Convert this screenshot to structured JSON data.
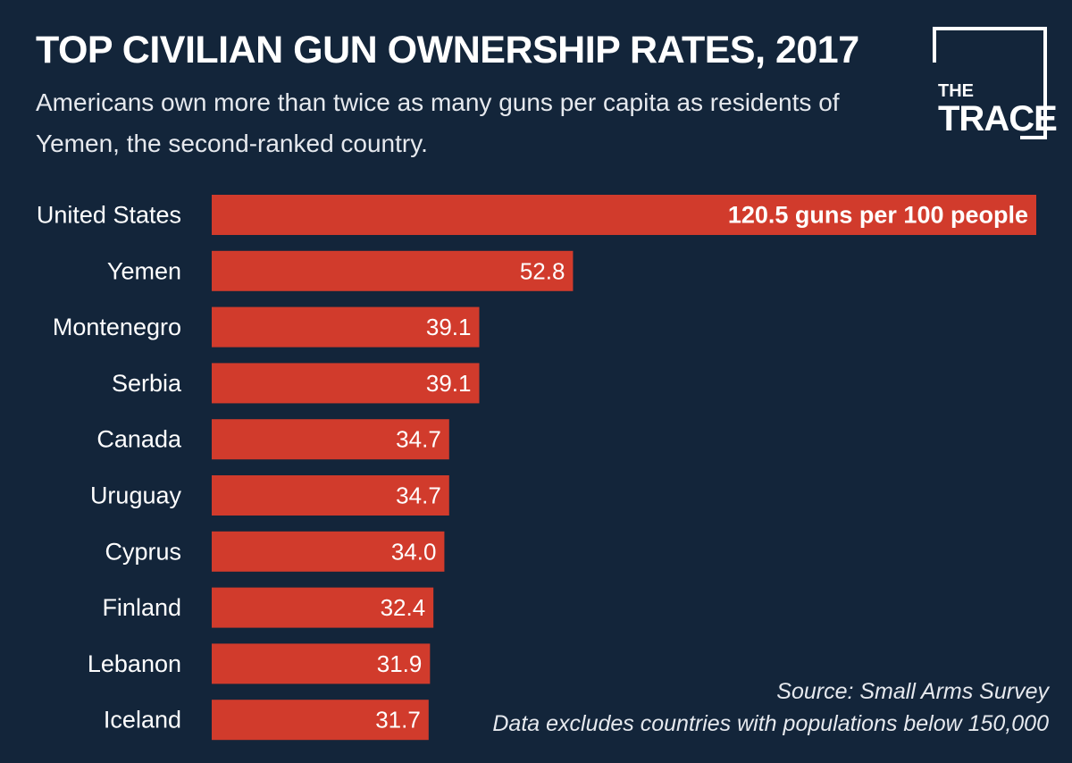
{
  "title": "TOP CIVILIAN GUN OWNERSHIP RATES, 2017",
  "subtitle": "Americans own more than twice as many guns per capita as residents of Yemen, the second-ranked country.",
  "logo": {
    "the": "THE",
    "trace": "TRACE"
  },
  "source": {
    "line1": "Source: Small Arms Survey",
    "line2": "Data excludes countries with populations below 150,000"
  },
  "colors": {
    "background": "#13253a",
    "bar": "#d13b2c",
    "text": "#ffffff"
  },
  "chart_data": {
    "type": "bar",
    "orientation": "horizontal",
    "title": "TOP CIVILIAN GUN OWNERSHIP RATES, 2017",
    "categories": [
      "United States",
      "Yemen",
      "Montenegro",
      "Serbia",
      "Canada",
      "Uruguay",
      "Cyprus",
      "Finland",
      "Lebanon",
      "Iceland"
    ],
    "values": [
      120.5,
      52.8,
      39.1,
      39.1,
      34.7,
      34.7,
      34.0,
      32.4,
      31.9,
      31.7
    ],
    "data_labels": [
      "120.5 guns per 100 people",
      "52.8",
      "39.1",
      "39.1",
      "34.7",
      "34.7",
      "34.0",
      "32.4",
      "31.9",
      "31.7"
    ],
    "xlim": [
      0,
      120.5
    ],
    "grid": false,
    "legend": "none"
  }
}
